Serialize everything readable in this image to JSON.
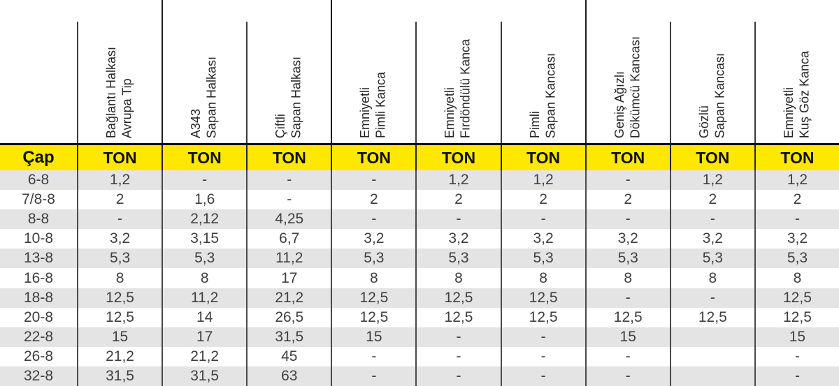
{
  "table": {
    "header": {
      "columns": [
        {
          "line1": "Bağlantı Halkası",
          "line2": "Avrupa Tip"
        },
        {
          "line1": "A343",
          "line2": "Sapan Halkası"
        },
        {
          "line1": "Çiftli",
          "line2": "Sapan Halkası"
        },
        {
          "line1": "Emniyetli",
          "line2": "Pimli Kanca"
        },
        {
          "line1": "Emniyetli",
          "line2": "Fırdöndülü Kanca"
        },
        {
          "line1": "Pimli",
          "line2": "Sapan Kancası"
        },
        {
          "line1": "Geniş Ağızlı",
          "line2": "Dökümcü Kancası"
        },
        {
          "line1": "Gözlü",
          "line2": "Sapan Kancası"
        },
        {
          "line1": "Emniyetli",
          "line2": "Kuş Göz Kanca"
        }
      ]
    },
    "unit_row": {
      "cap_label": "Çap",
      "ton_label": "TON"
    },
    "rows": [
      {
        "cap": "6-8",
        "values": [
          "1,2",
          "-",
          "-",
          "-",
          "1,2",
          "1,2",
          "-",
          "1,2",
          "1,2"
        ]
      },
      {
        "cap": "7/8-8",
        "values": [
          "2",
          "1,6",
          "-",
          "2",
          "2",
          "2",
          "2",
          "2",
          "2"
        ]
      },
      {
        "cap": "8-8",
        "values": [
          "-",
          "2,12",
          "4,25",
          "-",
          "-",
          "-",
          "-",
          "-",
          "-"
        ]
      },
      {
        "cap": "10-8",
        "values": [
          "3,2",
          "3,15",
          "6,7",
          "3,2",
          "3,2",
          "3,2",
          "3,2",
          "3,2",
          "3,2"
        ]
      },
      {
        "cap": "13-8",
        "values": [
          "5,3",
          "5,3",
          "11,2",
          "5,3",
          "5,3",
          "5,3",
          "5,3",
          "5,3",
          "5,3"
        ]
      },
      {
        "cap": "16-8",
        "values": [
          "8",
          "8",
          "17",
          "8",
          "8",
          "8",
          "8",
          "8",
          "8"
        ]
      },
      {
        "cap": "18-8",
        "values": [
          "12,5",
          "11,2",
          "21,2",
          "12,5",
          "12,5",
          "12,5",
          "-",
          "-",
          "12,5"
        ]
      },
      {
        "cap": "20-8",
        "values": [
          "12,5",
          "14",
          "26,5",
          "12,5",
          "12,5",
          "12,5",
          "12,5",
          "12,5",
          "12,5"
        ]
      },
      {
        "cap": "22-8",
        "values": [
          "15",
          "17",
          "31,5",
          "15",
          "-",
          "-",
          "15",
          "",
          "15"
        ]
      },
      {
        "cap": "26-8",
        "values": [
          "21,2",
          "21,2",
          "45",
          "-",
          "-",
          "-",
          "-",
          "",
          "-"
        ]
      },
      {
        "cap": "32-8",
        "values": [
          "31,5",
          "31,5",
          "63",
          "-",
          "-",
          "-",
          "-",
          "",
          "-"
        ]
      }
    ],
    "colors": {
      "band_yellow": "#ffe800",
      "alt_row_gray": "#e4e4e4",
      "divider_line": "#3c3c3c",
      "top_bar": "#0f0f0f"
    }
  }
}
